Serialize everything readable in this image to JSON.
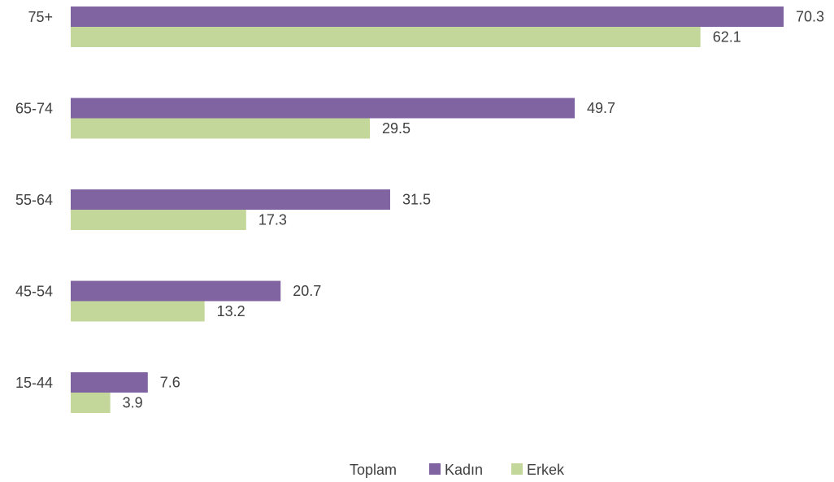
{
  "chart_data": {
    "type": "bar",
    "orientation": "horizontal",
    "categories": [
      "75+",
      "65-74",
      "55-64",
      "45-54",
      "15-44"
    ],
    "series": [
      {
        "name": "Kadın",
        "color": "#8064A2",
        "values": [
          70.3,
          49.7,
          31.5,
          20.7,
          7.6
        ]
      },
      {
        "name": "Erkek",
        "color": "#C4D79B",
        "values": [
          62.1,
          29.5,
          17.3,
          13.2,
          3.9
        ]
      }
    ],
    "legend": {
      "title": "Toplam",
      "position": "bottom"
    },
    "xlim": [
      0,
      70.3
    ],
    "grid": false
  }
}
